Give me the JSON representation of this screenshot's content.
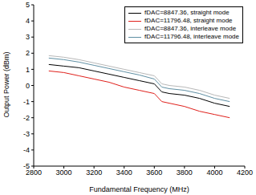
{
  "chart_data": {
    "type": "line",
    "x_label": "Fundamental Frequency (MHz)",
    "y_label": "Output Power (dBm)",
    "x": [
      2900,
      3000,
      3100,
      3200,
      3300,
      3400,
      3500,
      3600,
      3650,
      3700,
      3800,
      3900,
      4000,
      4100
    ],
    "series": [
      {
        "name": "fDAC=8847.36, straight mode",
        "color": "#000000",
        "values": [
          1.3,
          1.2,
          1.1,
          0.9,
          0.7,
          0.5,
          0.3,
          0.1,
          -0.4,
          -0.5,
          -0.6,
          -0.8,
          -1.1,
          -1.3
        ]
      },
      {
        "name": "fDAC=11796.48, straight mode",
        "color": "#e0201b",
        "values": [
          0.9,
          0.8,
          0.6,
          0.4,
          0.2,
          -0.1,
          -0.3,
          -0.5,
          -1.0,
          -1.1,
          -1.3,
          -1.6,
          -1.8,
          -2.0
        ]
      },
      {
        "name": "fDAC=8847.36, interleave mode",
        "color": "#b8b8b8",
        "values": [
          1.85,
          1.75,
          1.6,
          1.4,
          1.2,
          1.0,
          0.8,
          0.6,
          0.1,
          0.0,
          -0.1,
          -0.3,
          -0.6,
          -0.8
        ]
      },
      {
        "name": "fDAC=11796.48, interleave mode",
        "color": "#5f8fa3",
        "values": [
          1.7,
          1.6,
          1.45,
          1.25,
          1.05,
          0.85,
          0.65,
          0.4,
          -0.1,
          -0.2,
          -0.3,
          -0.5,
          -0.8,
          -1.0
        ]
      }
    ],
    "xlim": [
      2800,
      4200
    ],
    "xticks": [
      2800,
      3000,
      3200,
      3400,
      3600,
      3800,
      4000,
      4200
    ],
    "ylim": [
      -5,
      5
    ],
    "yticks": [
      -5,
      -4,
      -3,
      -2,
      -1,
      0,
      1,
      2,
      3,
      4,
      5
    ],
    "grid": false,
    "legend": "upper right"
  }
}
